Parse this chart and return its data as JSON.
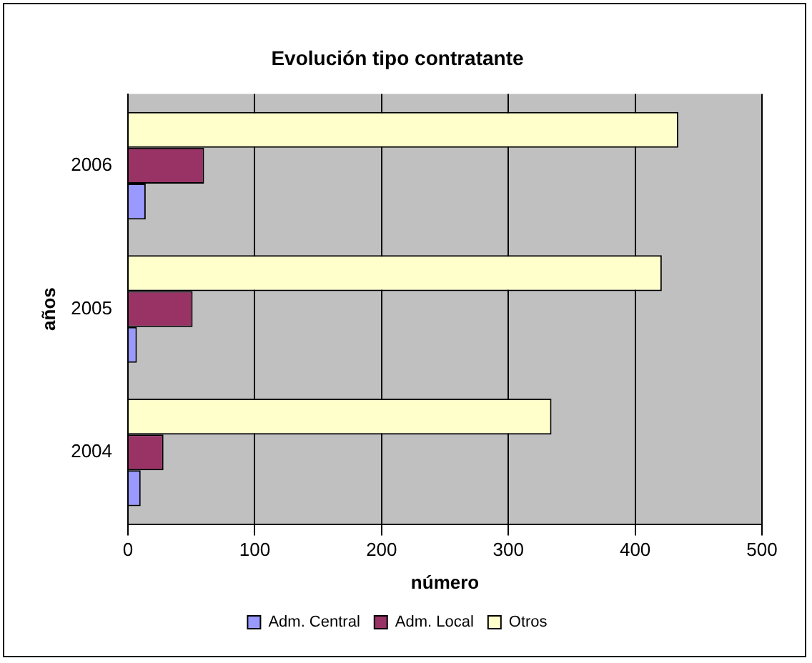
{
  "chart_data": {
    "type": "bar",
    "orientation": "horizontal",
    "title": "Evolución tipo contratante",
    "xlabel": "número",
    "ylabel": "años",
    "categories": [
      "2006",
      "2005",
      "2004"
    ],
    "series": [
      {
        "name": "Adm. Central",
        "color": "#9999ff",
        "values": [
          14,
          7,
          10
        ]
      },
      {
        "name": "Adm. Local",
        "color": "#993366",
        "values": [
          60,
          51,
          28
        ]
      },
      {
        "name": "Otros",
        "color": "#ffffcc",
        "values": [
          434,
          421,
          334
        ]
      }
    ],
    "xlim": [
      0,
      500
    ],
    "xticks": [
      0,
      100,
      200,
      300,
      400,
      500
    ],
    "grid": "x",
    "legend": "bottom"
  }
}
